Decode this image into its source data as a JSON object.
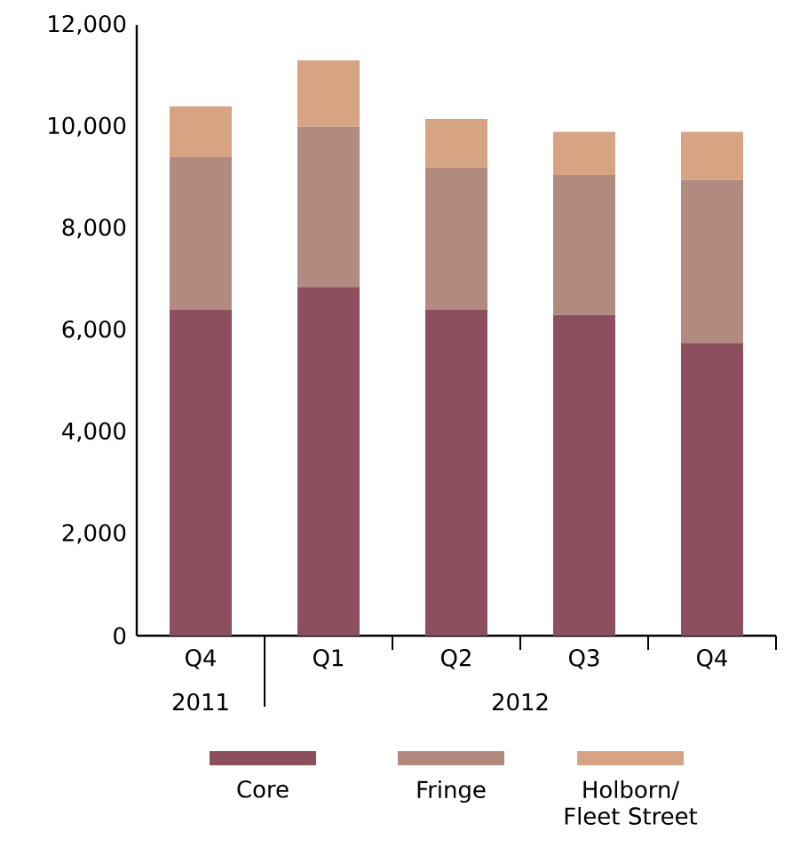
{
  "chart_data": {
    "type": "bar",
    "stacked": true,
    "categories": [
      "Q4",
      "Q1",
      "Q2",
      "Q3",
      "Q4"
    ],
    "series": [
      {
        "name": "Core",
        "color": "#8c4f5e",
        "values": [
          6400,
          6850,
          6400,
          6300,
          5750
        ]
      },
      {
        "name": "Fringe",
        "color": "#b28b80",
        "values": [
          3000,
          3150,
          2800,
          2750,
          3200
        ]
      },
      {
        "name": "Holborn/ Fleet Street",
        "color": "#d6a482",
        "values": [
          1000,
          1300,
          950,
          850,
          950
        ]
      }
    ],
    "ylim": [
      0,
      12000
    ],
    "yticks": [
      {
        "value": 0,
        "label": "0"
      },
      {
        "value": 2000,
        "label": "2,000"
      },
      {
        "value": 4000,
        "label": "4,000"
      },
      {
        "value": 6000,
        "label": "6,000"
      },
      {
        "value": 8000,
        "label": "8,000"
      },
      {
        "value": 10000,
        "label": "10,000"
      },
      {
        "value": 12000,
        "label": "12,000"
      }
    ],
    "annotations": [
      "2011",
      "2012"
    ],
    "grid": false,
    "legend": "bottom"
  }
}
